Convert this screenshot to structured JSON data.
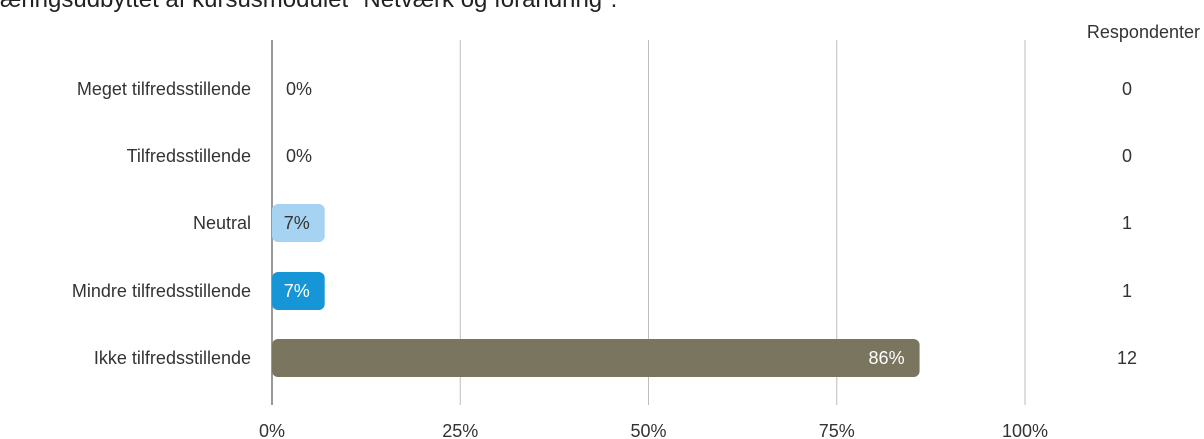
{
  "title": "æringsudbyttet af kursusmodulet \"Netværk og forandring\".",
  "respondents_header": "Respondenter",
  "chart_data": {
    "type": "bar",
    "orientation": "horizontal",
    "title": "æringsudbyttet af kursusmodulet \"Netværk og forandring\".",
    "categories": [
      "Meget tilfredsstillende",
      "Tilfredsstillende",
      "Neutral",
      "Mindre tilfredsstillende",
      "Ikke tilfredsstillende"
    ],
    "values": [
      0,
      0,
      7,
      7,
      86
    ],
    "value_labels": [
      "0%",
      "0%",
      "7%",
      "7%",
      "86%"
    ],
    "respondents": [
      0,
      0,
      1,
      1,
      12
    ],
    "colors": [
      "#a6d3f2",
      "#a6d3f2",
      "#a6d3f2",
      "#1696d6",
      "#7a755f"
    ],
    "value_text_colors": [
      "#333333",
      "#333333",
      "#333333",
      "#ffffff",
      "#ffffff"
    ],
    "xlim": [
      0,
      100
    ],
    "xticks": [
      0,
      25,
      50,
      75,
      100
    ],
    "xtick_labels": [
      "0%",
      "25%",
      "50%",
      "75%",
      "100%"
    ],
    "grid": true
  }
}
